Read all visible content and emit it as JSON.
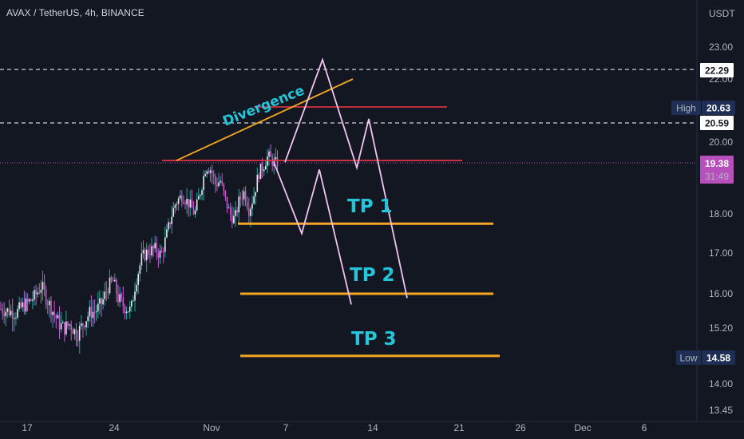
{
  "header": {
    "symbol": "AVAX / TetherUS, 4h, BINANCE"
  },
  "colors": {
    "background": "#131722",
    "candle": "#e8eaf0",
    "candle_up_wick": "#26a69a",
    "candle_down": "#c45bc9",
    "target_line": "#f5a623",
    "resistance_line": "#f23645",
    "path_line": "#f0c4f0",
    "divergence_line": "#f5a623",
    "label": "#26c6da",
    "current_price": "#b84fbd",
    "high_tag": "#1e2e55",
    "low_tag": "#1e2e55"
  },
  "chart_data": {
    "type": "candlestick",
    "price_unit": "USDT",
    "ylim": [
      13.3,
      24.2
    ],
    "y_ticks": [
      "23.00",
      "22.00",
      "20.00",
      "18.00",
      "17.00",
      "16.00",
      "15.20",
      "14.00",
      "13.45"
    ],
    "x_ticks": [
      "17",
      "24",
      "Nov",
      "7",
      "14",
      "21",
      "26",
      "Dec",
      "6"
    ],
    "close_trend": [
      [
        0,
        15.65
      ],
      [
        10,
        15.6
      ],
      [
        20,
        15.55
      ],
      [
        28,
        15.7
      ],
      [
        36,
        15.8
      ],
      [
        44,
        15.95
      ],
      [
        52,
        16.2
      ],
      [
        58,
        15.9
      ],
      [
        66,
        15.6
      ],
      [
        74,
        15.3
      ],
      [
        80,
        15.2
      ],
      [
        88,
        15.3
      ],
      [
        96,
        15.05
      ],
      [
        104,
        15.3
      ],
      [
        112,
        15.55
      ],
      [
        120,
        15.6
      ],
      [
        128,
        15.8
      ],
      [
        136,
        16.2
      ],
      [
        142,
        16.3
      ],
      [
        148,
        15.9
      ],
      [
        156,
        15.7
      ],
      [
        164,
        15.6
      ],
      [
        170,
        16.3
      ],
      [
        178,
        16.9
      ],
      [
        186,
        17.05
      ],
      [
        194,
        17.1
      ],
      [
        202,
        16.95
      ],
      [
        208,
        17.4
      ],
      [
        214,
        17.9
      ],
      [
        220,
        18.3
      ],
      [
        228,
        18.5
      ],
      [
        236,
        18.3
      ],
      [
        244,
        18.0
      ],
      [
        252,
        18.7
      ],
      [
        258,
        19.3
      ],
      [
        264,
        19.2
      ],
      [
        270,
        18.8
      ],
      [
        276,
        18.9
      ],
      [
        282,
        18.4
      ],
      [
        288,
        18.0
      ],
      [
        294,
        17.85
      ],
      [
        300,
        18.4
      ],
      [
        306,
        18.6
      ],
      [
        312,
        18.1
      ],
      [
        318,
        18.5
      ],
      [
        324,
        19.1
      ],
      [
        330,
        19.3
      ],
      [
        336,
        19.6
      ],
      [
        342,
        19.4
      ],
      [
        348,
        19.38
      ]
    ],
    "annotations": {
      "divergence_label": "Divergence",
      "tp1_label": "TP 1",
      "tp2_label": "TP 2",
      "tp3_label": "TP 3",
      "dashed_level_1": "22.29",
      "dashed_level_2": "20.59",
      "high_label": "High",
      "high_value": "20.63",
      "current_price": "19.38",
      "countdown": "31:49",
      "low_label": "Low",
      "low_value": "14.58",
      "tp1_price": 17.75,
      "tp2_price": 16.0,
      "tp3_price": 14.6,
      "resistance_1": 20.63,
      "resistance_2": 19.45,
      "divergence_from": [
        221,
        19.45
      ],
      "divergence_to": [
        442,
        22.0
      ],
      "projection_a": [
        [
          343,
          19.4
        ],
        [
          378,
          17.5
        ],
        [
          400,
          19.2
        ],
        [
          440,
          15.75
        ]
      ],
      "projection_b": [
        [
          357,
          19.4
        ],
        [
          404,
          22.6
        ],
        [
          447,
          19.25
        ],
        [
          462,
          20.6
        ],
        [
          510,
          15.9
        ]
      ]
    }
  }
}
